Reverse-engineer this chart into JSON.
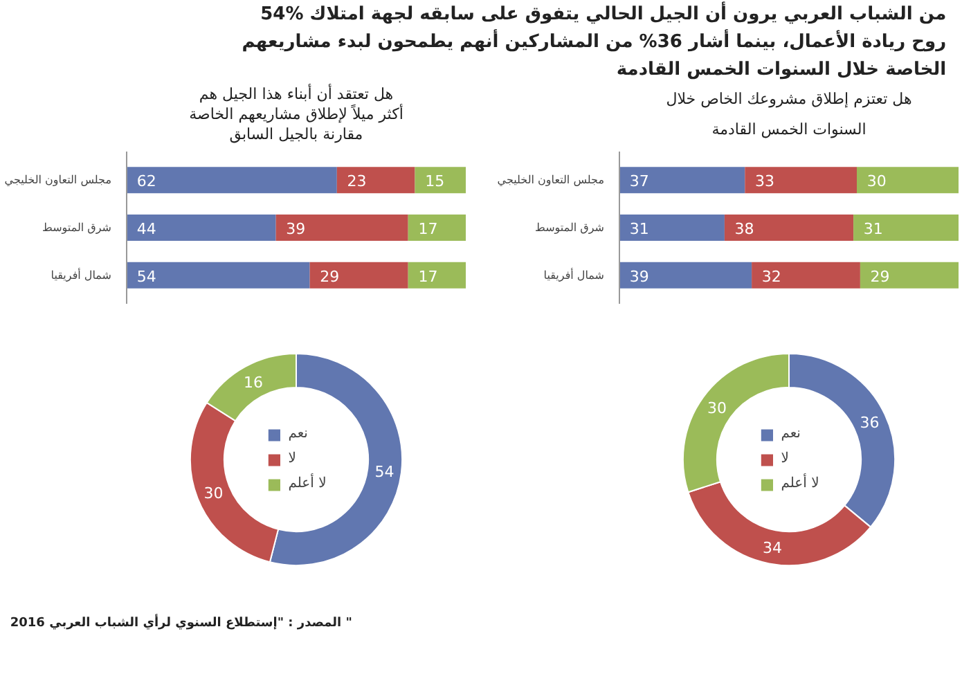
{
  "chart_data": [
    {
      "type": "bar",
      "title": "54% من الشباب العربي يرون أن الجيل الحالي يتفوق على سابقه لجهة امتلاك روح ريادة الأعمال، بينما أشار 36% من المشاركين أنهم يطمحون لبدء مشاريعهم الخاصة خلال السنوات الخمس القادمة",
      "subtitle": "هل تعتزم إطلاق مشروعك الخاص خلال السنوات الخمس القادمة",
      "categories": [
        "مجلس التعاون الخليجي",
        "شرق المتوسط",
        "شمال أفريقيا"
      ],
      "orientation": "horizontal",
      "stacked": true,
      "data_labels": true,
      "tick_labels": "y",
      "series": [
        {
          "color": "#6177b0",
          "values": [
            37,
            31,
            39
          ]
        },
        {
          "color": "#bf504d",
          "values": [
            33,
            38,
            32
          ]
        },
        {
          "color": "#9bbb59",
          "values": [
            30,
            31,
            29
          ]
        }
      ]
    },
    {
      "type": "bar",
      "subtitle": "هل تعتقد أن أبناء هذا الجيل هم أكثر ميلاً لإطلاق مشاريعهم الخاصة مقارنة بالجيل السابق",
      "categories": [
        "مجلس التعاون الخليجي",
        "شرق المتوسط",
        "شمال أفريقيا"
      ],
      "orientation": "horizontal",
      "stacked": true,
      "data_labels": true,
      "tick_labels": "y",
      "series": [
        {
          "color": "#6177b0",
          "values": [
            62,
            44,
            54
          ]
        },
        {
          "color": "#bf504d",
          "values": [
            23,
            39,
            29
          ]
        },
        {
          "color": "#9bbb59",
          "values": [
            15,
            17,
            17
          ]
        }
      ]
    },
    {
      "type": "donut",
      "categories": [
        "نعم",
        "لا",
        "لا أعلم"
      ],
      "values": [
        36,
        34,
        30
      ],
      "colors": [
        "#6177b0",
        "#bf504d",
        "#9bbb59"
      ],
      "data_labels": true,
      "legend": "center"
    },
    {
      "type": "donut",
      "categories": [
        "نعم",
        "لا",
        "لا أعلم"
      ],
      "values": [
        54,
        30,
        16
      ],
      "colors": [
        "#6177b0",
        "#bf504d",
        "#9bbb59"
      ],
      "data_labels": true,
      "legend": "center",
      "annotations": [
        "المصدر : \"إستطلاع السنوي لرأي الشباب العربي 2016 \""
      ]
    }
  ]
}
